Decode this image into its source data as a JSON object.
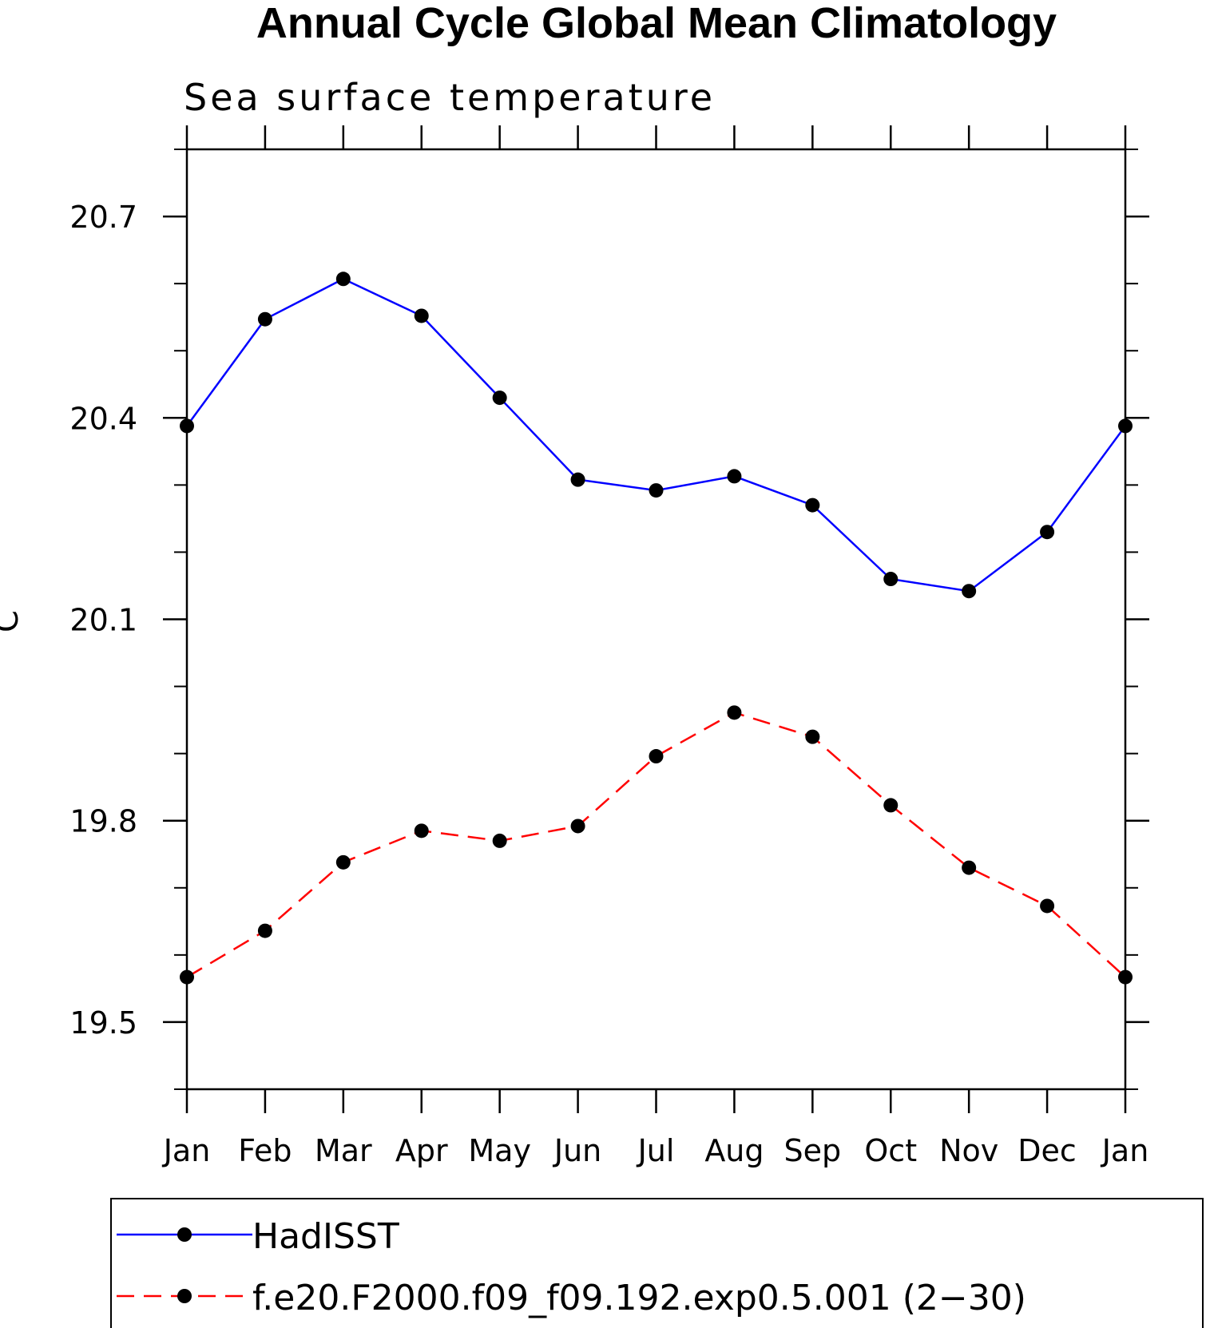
{
  "chart_data": {
    "type": "line",
    "title": "Annual Cycle Global Mean Climatology",
    "subtitle": "Sea surface temperature",
    "xlabel": "",
    "ylabel": "C",
    "categories": [
      "Jan",
      "Feb",
      "Mar",
      "Apr",
      "May",
      "Jun",
      "Jul",
      "Aug",
      "Sep",
      "Oct",
      "Nov",
      "Dec",
      "Jan"
    ],
    "ylim": [
      19.4,
      20.8
    ],
    "y_major_ticks": [
      19.5,
      19.8,
      20.1,
      20.4,
      20.7
    ],
    "y_tick_labels": [
      "19.5",
      "19.8",
      "20.1",
      "20.4",
      "20.7"
    ],
    "y_minor_step": 0.1,
    "grid": false,
    "legend_position": "bottom",
    "series": [
      {
        "name": "HadISST",
        "color": "#0000ff",
        "line_style": "solid",
        "marker": "filled-circle",
        "values": [
          20.388,
          20.547,
          20.607,
          20.552,
          20.43,
          20.308,
          20.292,
          20.313,
          20.27,
          20.16,
          20.142,
          20.23,
          20.388
        ]
      },
      {
        "name": "f.e20.F2000.f09_f09.192.exp0.5.001 (2−30)",
        "color": "#ff0000",
        "line_style": "dashed",
        "marker": "filled-circle",
        "values": [
          19.567,
          19.636,
          19.738,
          19.785,
          19.77,
          19.792,
          19.896,
          19.961,
          19.925,
          19.823,
          19.73,
          19.673,
          19.567
        ]
      }
    ]
  }
}
